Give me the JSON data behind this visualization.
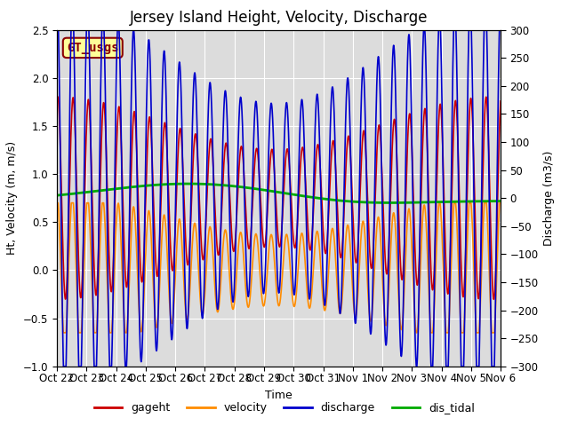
{
  "title": "Jersey Island Height, Velocity, Discharge",
  "xlabel": "Time",
  "ylabel_left": "Ht, Velocity (m, m/s)",
  "ylabel_right": "Discharge (m3/s)",
  "ylim_left": [
    -1.0,
    2.5
  ],
  "ylim_right": [
    -300,
    300
  ],
  "xlim_days": [
    0,
    15.0
  ],
  "background_color": "#ffffff",
  "plot_bg_color": "#dcdcdc",
  "legend_label": "GT_usgs",
  "legend_box_color": "#ffff99",
  "legend_box_edge": "#8b0000",
  "legend_text_color": "#8b0000",
  "line_colors": {
    "gageht": "#cc0000",
    "velocity": "#ff8c00",
    "discharge": "#0000cc",
    "dis_tidal": "#00aa00"
  },
  "line_widths": {
    "gageht": 1.2,
    "velocity": 1.2,
    "discharge": 1.2,
    "dis_tidal": 2.0
  },
  "xtick_labels": [
    "Oct 22",
    "Oct 23",
    "Oct 24",
    "Oct 25",
    "Oct 26",
    "Oct 27",
    "Oct 28",
    "Oct 29",
    "Oct 30",
    "Oct 31",
    "Nov 1",
    "Nov 2",
    "Nov 3",
    "Nov 4",
    "Nov 5",
    "Nov 6"
  ],
  "xtick_positions": [
    0,
    1,
    2,
    3,
    4,
    5,
    6,
    7,
    8,
    9,
    10,
    11,
    12,
    13,
    14,
    15
  ],
  "yticks_left": [
    -1.0,
    -0.5,
    0.0,
    0.5,
    1.0,
    1.5,
    2.0,
    2.5
  ],
  "yticks_right": [
    -300,
    -250,
    -200,
    -150,
    -100,
    -50,
    0,
    50,
    100,
    150,
    200,
    250,
    300
  ],
  "grid_color": "#ffffff",
  "title_fontsize": 12,
  "axis_fontsize": 9,
  "tick_fontsize": 8.5,
  "legend_fontsize": 9
}
